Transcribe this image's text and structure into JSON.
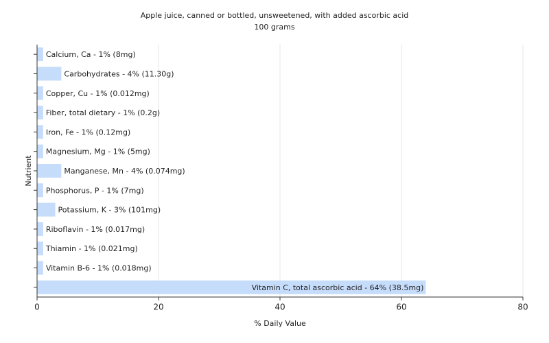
{
  "chart_data": {
    "type": "bar",
    "orientation": "horizontal",
    "title": "Apple juice, canned or bottled, unsweetened, with added ascorbic acid",
    "subtitle": "100 grams",
    "x_label": "% Daily Value",
    "y_label": "Nutrient",
    "values": [
      1,
      4,
      1,
      1,
      1,
      1,
      4,
      1,
      3,
      1,
      1,
      1,
      64
    ],
    "value_labels": [
      "Calcium, Ca - 1% (8mg)",
      "Carbohydrates - 4% (11.30g)",
      "Copper, Cu - 1% (0.012mg)",
      "Fiber, total dietary - 1% (0.2g)",
      "Iron, Fe - 1% (0.12mg)",
      "Magnesium, Mg - 1% (5mg)",
      "Manganese, Mn - 4% (0.074mg)",
      "Phosphorus, P - 1% (7mg)",
      "Potassium, K - 3% (101mg)",
      "Riboflavin - 1% (0.017mg)",
      "Thiamin - 1% (0.021mg)",
      "Vitamin B-6 - 1% (0.018mg)",
      "Vitamin C, total ascorbic acid - 64% (38.5mg)"
    ],
    "color": "#c6dcfb",
    "xlim": [
      0,
      80
    ],
    "xticks": [
      0,
      20,
      40,
      60,
      80
    ],
    "grid": true
  }
}
